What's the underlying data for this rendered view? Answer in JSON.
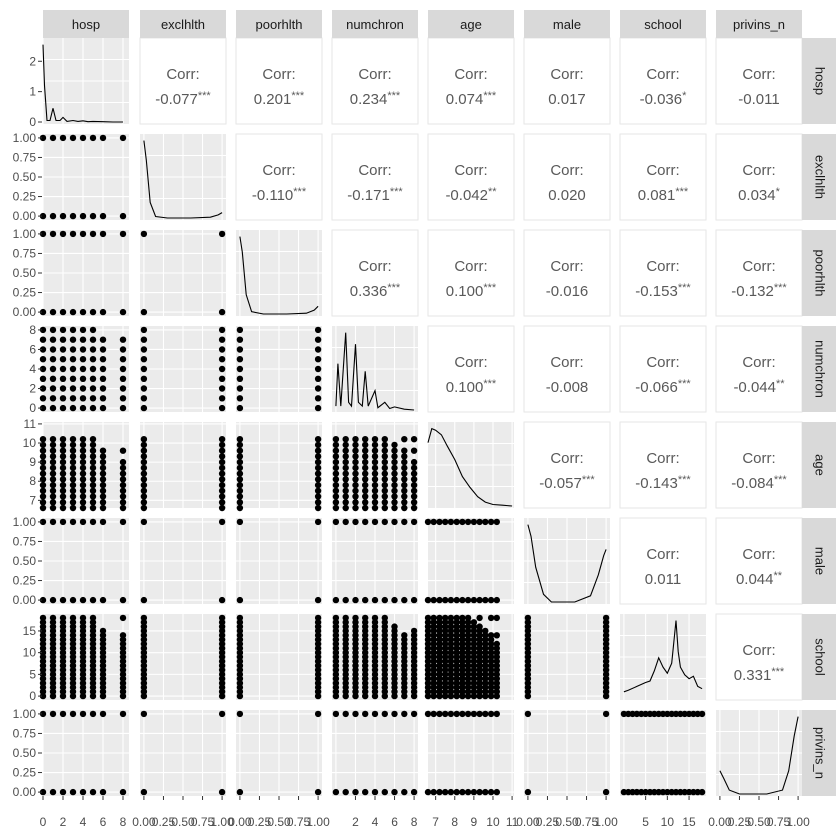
{
  "chart_data": {
    "type": "scatter",
    "title": "",
    "variables": [
      "hosp",
      "exclhlth",
      "poorhlth",
      "numchron",
      "age",
      "male",
      "school",
      "privins_n"
    ],
    "corr_label": "Corr:",
    "correlations": [
      {
        "row": "hosp",
        "col": "exclhlth",
        "value": "-0.077",
        "stars": "***"
      },
      {
        "row": "hosp",
        "col": "poorhlth",
        "value": "0.201",
        "stars": "***"
      },
      {
        "row": "hosp",
        "col": "numchron",
        "value": "0.234",
        "stars": "***"
      },
      {
        "row": "hosp",
        "col": "age",
        "value": "0.074",
        "stars": "***"
      },
      {
        "row": "hosp",
        "col": "male",
        "value": "0.017",
        "stars": ""
      },
      {
        "row": "hosp",
        "col": "school",
        "value": "-0.036",
        "stars": "*"
      },
      {
        "row": "hosp",
        "col": "privins_n",
        "value": "-0.011",
        "stars": ""
      },
      {
        "row": "exclhlth",
        "col": "poorhlth",
        "value": "-0.110",
        "stars": "***"
      },
      {
        "row": "exclhlth",
        "col": "numchron",
        "value": "-0.171",
        "stars": "***"
      },
      {
        "row": "exclhlth",
        "col": "age",
        "value": "-0.042",
        "stars": "**"
      },
      {
        "row": "exclhlth",
        "col": "male",
        "value": "0.020",
        "stars": ""
      },
      {
        "row": "exclhlth",
        "col": "school",
        "value": "0.081",
        "stars": "***"
      },
      {
        "row": "exclhlth",
        "col": "privins_n",
        "value": "0.034",
        "stars": "*"
      },
      {
        "row": "poorhlth",
        "col": "numchron",
        "value": "0.336",
        "stars": "***"
      },
      {
        "row": "poorhlth",
        "col": "age",
        "value": "0.100",
        "stars": "***"
      },
      {
        "row": "poorhlth",
        "col": "male",
        "value": "-0.016",
        "stars": ""
      },
      {
        "row": "poorhlth",
        "col": "school",
        "value": "-0.153",
        "stars": "***"
      },
      {
        "row": "poorhlth",
        "col": "privins_n",
        "value": "-0.132",
        "stars": "***"
      },
      {
        "row": "numchron",
        "col": "age",
        "value": "0.100",
        "stars": "***"
      },
      {
        "row": "numchron",
        "col": "male",
        "value": "-0.008",
        "stars": ""
      },
      {
        "row": "numchron",
        "col": "school",
        "value": "-0.066",
        "stars": "***"
      },
      {
        "row": "numchron",
        "col": "privins_n",
        "value": "-0.044",
        "stars": "**"
      },
      {
        "row": "age",
        "col": "male",
        "value": "-0.057",
        "stars": "***"
      },
      {
        "row": "age",
        "col": "school",
        "value": "-0.143",
        "stars": "***"
      },
      {
        "row": "age",
        "col": "privins_n",
        "value": "-0.084",
        "stars": "***"
      },
      {
        "row": "male",
        "col": "school",
        "value": "0.011",
        "stars": ""
      },
      {
        "row": "male",
        "col": "privins_n",
        "value": "0.044",
        "stars": "**"
      },
      {
        "row": "school",
        "col": "privins_n",
        "value": "0.331",
        "stars": "***"
      }
    ],
    "axes": {
      "hosp": {
        "range": [
          0,
          8.6
        ],
        "ticks": [
          0,
          2,
          4,
          6,
          8
        ]
      },
      "exclhlth": {
        "range": [
          -0.05,
          1.05
        ],
        "ticks": [
          0,
          0.25,
          0.5,
          0.75,
          1
        ],
        "ytick_labels": [
          "0.00",
          "0.25",
          "0.50",
          "0.75",
          "1.00"
        ]
      },
      "poorhlth": {
        "range": [
          -0.05,
          1.05
        ],
        "ticks": [
          0,
          0.25,
          0.5,
          0.75,
          1
        ],
        "ytick_labels": [
          "0.00",
          "0.25",
          "0.50",
          "0.75",
          "1.00"
        ]
      },
      "numchron": {
        "range": [
          -0.4,
          8.4
        ],
        "ticks": [
          0,
          2,
          4,
          6,
          8
        ]
      },
      "age": {
        "range": [
          6.6,
          11.1
        ],
        "ticks": [
          7,
          8,
          9,
          10,
          11
        ]
      },
      "male": {
        "range": [
          -0.05,
          1.05
        ],
        "ticks": [
          0,
          0.25,
          0.5,
          0.75,
          1
        ],
        "ytick_labels": [
          "0.00",
          "0.25",
          "0.50",
          "0.75",
          "1.00"
        ]
      },
      "school": {
        "range": [
          -0.9,
          18.9
        ],
        "ticks": [
          0,
          5,
          10,
          15
        ]
      },
      "privins_n": {
        "range": [
          -0.05,
          1.05
        ],
        "ticks": [
          0,
          0.25,
          0.5,
          0.75,
          1
        ],
        "ytick_labels": [
          "0.00",
          "0.25",
          "0.50",
          "0.75",
          "1.00"
        ]
      }
    },
    "bottom_axis_labels": [
      [
        "0",
        "2",
        "4",
        "6",
        "8"
      ],
      [
        "0.00",
        "0.25",
        "0.50",
        "0.75",
        "1.00"
      ],
      [
        "0.00",
        "0.25",
        "0.50",
        "0.75",
        "1.00"
      ],
      [
        "2",
        "4",
        "6",
        "8"
      ],
      [
        "7",
        "8",
        "9",
        "10",
        "11"
      ],
      [
        "0.00",
        "0.25",
        "0.50",
        "0.75",
        "1.00"
      ],
      [
        "5",
        "10",
        "15"
      ],
      [
        "0.00",
        "0.25",
        "0.50",
        "0.75",
        "1.00"
      ]
    ],
    "left_axis_labels": [
      [
        "0",
        "1",
        "2"
      ],
      [
        "0.00",
        "0.25",
        "0.50",
        "0.75",
        "1.00"
      ],
      [
        "0.00",
        "0.25",
        "0.50",
        "0.75",
        "1.00"
      ],
      [
        "0",
        "2",
        "4",
        "6",
        "8"
      ],
      [
        "7",
        "8",
        "9",
        "10",
        "11"
      ],
      [
        "0.00",
        "0.25",
        "0.50",
        "0.75",
        "1.00"
      ],
      [
        "0",
        "5",
        "10",
        "15"
      ],
      [
        "0.00",
        "0.25",
        "0.50",
        "0.75",
        "1.00"
      ]
    ],
    "hosp_density_yticks": [
      0,
      1,
      2
    ],
    "densities": {
      "hosp": [
        [
          0,
          2.55
        ],
        [
          0.15,
          1.2
        ],
        [
          0.4,
          0.05
        ],
        [
          0.7,
          0.05
        ],
        [
          1,
          0.45
        ],
        [
          1.3,
          0.05
        ],
        [
          1.7,
          0.05
        ],
        [
          2,
          0.15
        ],
        [
          2.4,
          0.02
        ],
        [
          3,
          0.05
        ],
        [
          3.5,
          0.02
        ],
        [
          4,
          0.04
        ],
        [
          4.5,
          0.01
        ],
        [
          5,
          0.02
        ],
        [
          6,
          0.01
        ],
        [
          7,
          0.0
        ],
        [
          8,
          0.0
        ]
      ],
      "exclhlth": [
        [
          0,
          1.0
        ],
        [
          0.03,
          0.75
        ],
        [
          0.08,
          0.2
        ],
        [
          0.15,
          0.02
        ],
        [
          0.3,
          0.0
        ],
        [
          0.6,
          0.0
        ],
        [
          0.85,
          0.01
        ],
        [
          0.95,
          0.04
        ],
        [
          1.0,
          0.07
        ]
      ],
      "poorhlth": [
        [
          0,
          1.0
        ],
        [
          0.03,
          0.8
        ],
        [
          0.08,
          0.25
        ],
        [
          0.15,
          0.03
        ],
        [
          0.3,
          0.0
        ],
        [
          0.6,
          0.0
        ],
        [
          0.85,
          0.01
        ],
        [
          0.95,
          0.05
        ],
        [
          1.0,
          0.1
        ]
      ],
      "numchron": [
        [
          0,
          0.05
        ],
        [
          0.2,
          0.6
        ],
        [
          0.5,
          0.05
        ],
        [
          1,
          1.0
        ],
        [
          1.3,
          0.1
        ],
        [
          1.6,
          0.05
        ],
        [
          2,
          0.85
        ],
        [
          2.3,
          0.1
        ],
        [
          2.7,
          0.05
        ],
        [
          3,
          0.5
        ],
        [
          3.3,
          0.05
        ],
        [
          4,
          0.25
        ],
        [
          4.3,
          0.03
        ],
        [
          5,
          0.1
        ],
        [
          5.5,
          0.02
        ],
        [
          6,
          0.04
        ],
        [
          7,
          0.01
        ],
        [
          8,
          0.0
        ]
      ],
      "age": [
        [
          6.6,
          0.82
        ],
        [
          6.8,
          1.0
        ],
        [
          7.0,
          0.98
        ],
        [
          7.3,
          0.92
        ],
        [
          7.6,
          0.78
        ],
        [
          8.0,
          0.6
        ],
        [
          8.4,
          0.38
        ],
        [
          8.8,
          0.24
        ],
        [
          9.2,
          0.12
        ],
        [
          9.6,
          0.05
        ],
        [
          10.0,
          0.02
        ],
        [
          10.5,
          0.01
        ],
        [
          11.0,
          0.0
        ]
      ],
      "male": [
        [
          0,
          1.0
        ],
        [
          0.04,
          0.85
        ],
        [
          0.1,
          0.45
        ],
        [
          0.2,
          0.1
        ],
        [
          0.3,
          0.0
        ],
        [
          0.6,
          0.0
        ],
        [
          0.8,
          0.08
        ],
        [
          0.9,
          0.35
        ],
        [
          0.97,
          0.6
        ],
        [
          1.0,
          0.68
        ]
      ],
      "school": [
        [
          0,
          0.08
        ],
        [
          1,
          0.1
        ],
        [
          3,
          0.15
        ],
        [
          5,
          0.2
        ],
        [
          6,
          0.22
        ],
        [
          7,
          0.35
        ],
        [
          8,
          0.52
        ],
        [
          9,
          0.4
        ],
        [
          10,
          0.32
        ],
        [
          11,
          0.45
        ],
        [
          12,
          1.0
        ],
        [
          12.5,
          0.6
        ],
        [
          13,
          0.4
        ],
        [
          14,
          0.3
        ],
        [
          15,
          0.25
        ],
        [
          16,
          0.28
        ],
        [
          17,
          0.15
        ],
        [
          18,
          0.12
        ]
      ],
      "privins_n": [
        [
          0,
          0.3
        ],
        [
          0.05,
          0.2
        ],
        [
          0.12,
          0.05
        ],
        [
          0.25,
          0.0
        ],
        [
          0.6,
          0.0
        ],
        [
          0.8,
          0.05
        ],
        [
          0.88,
          0.3
        ],
        [
          0.95,
          0.75
        ],
        [
          1.0,
          1.0
        ]
      ]
    }
  }
}
